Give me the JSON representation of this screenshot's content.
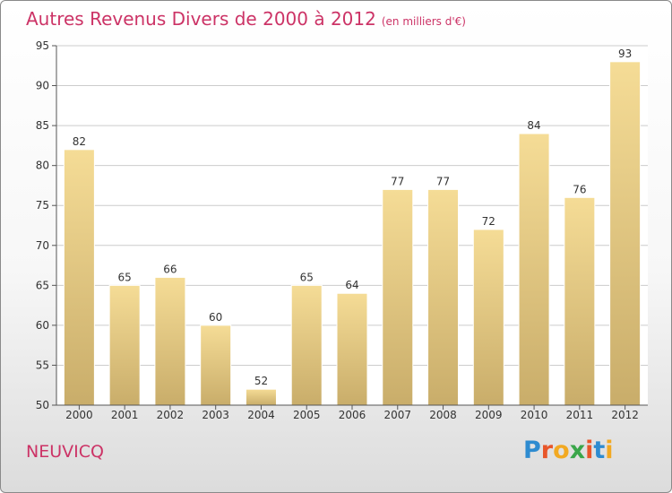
{
  "title": "Autres Revenus Divers de 2000 à 2012",
  "subtitle": "(en milliers d'€)",
  "commune": "NEUVICQ",
  "logo": {
    "letters": [
      "P",
      "r",
      "o",
      "x",
      "i",
      "t",
      "i"
    ],
    "colors": [
      "#2e8bd0",
      "#e8562a",
      "#f2a922",
      "#3aa64a",
      "#e8562a",
      "#2e8bd0",
      "#f2a922"
    ]
  },
  "colors": {
    "title": "#cc3366",
    "bar_light": "#f5dc96",
    "bar_dark": "#c9ad6a",
    "grid": "#cccccc",
    "axis": "#555555"
  },
  "chart_data": {
    "type": "bar",
    "categories": [
      "2000",
      "2001",
      "2002",
      "2003",
      "2004",
      "2005",
      "2006",
      "2007",
      "2008",
      "2009",
      "2010",
      "2011",
      "2012"
    ],
    "values": [
      82,
      65,
      66,
      60,
      52,
      65,
      64,
      77,
      77,
      72,
      84,
      76,
      93
    ],
    "ylim": [
      50,
      95
    ],
    "yticks": [
      50,
      55,
      60,
      65,
      70,
      75,
      80,
      85,
      90,
      95
    ],
    "grid": true,
    "xlabel": "",
    "ylabel": ""
  }
}
